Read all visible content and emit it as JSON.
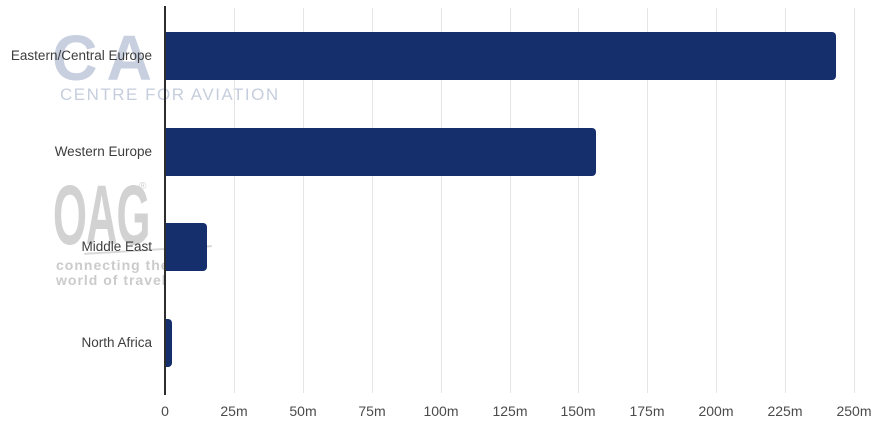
{
  "watermarks": {
    "capa": {
      "title": "CAPA",
      "subtitle": "CENTRE FOR AVIATION"
    },
    "oag": {
      "title": "OAG",
      "registered": "®",
      "tagline1": "connecting the",
      "tagline2": "world of travel"
    }
  },
  "chart_data": {
    "type": "bar",
    "orientation": "horizontal",
    "title": "",
    "categories": [
      "Eastern/Central Europe",
      "Western Europe",
      "Middle East",
      "North Africa"
    ],
    "values": [
      243,
      156,
      15,
      2
    ],
    "value_unit": "millions (m)",
    "xlim": [
      0,
      250
    ],
    "xticks": [
      0,
      25,
      50,
      75,
      100,
      125,
      150,
      175,
      200,
      225,
      250
    ],
    "xtick_labels": [
      "0",
      "25m",
      "50m",
      "75m",
      "100m",
      "125m",
      "150m",
      "175m",
      "200m",
      "225m",
      "250m"
    ],
    "grid": "vertical-only",
    "legend": "none",
    "colors": {
      "bar": "#142f6c",
      "gridline": "#e5e5e5",
      "axis_line": "#2d2d2d",
      "category_label": "#3d3d3d",
      "tick_label": "#4b4b4b",
      "watermark_capa": "#c8d0e0",
      "watermark_oag": "#d2d2d2"
    }
  }
}
